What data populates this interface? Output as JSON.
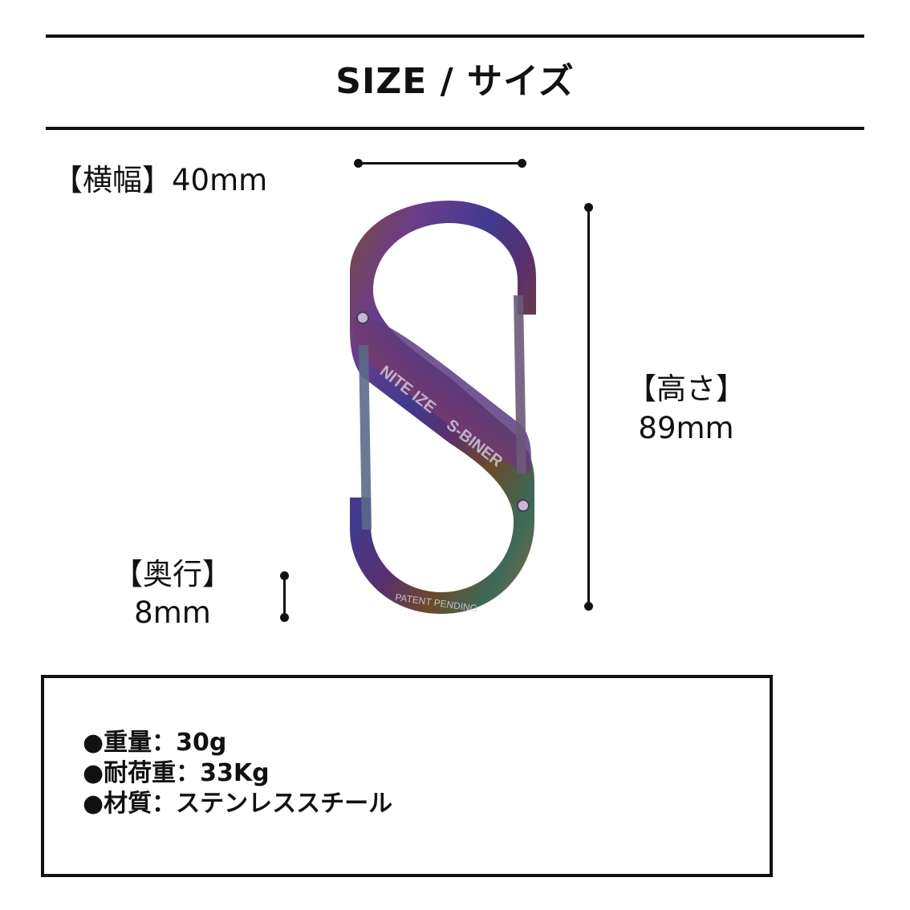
{
  "header": {
    "title": "SIZE / サイズ"
  },
  "dimensions": {
    "width_label": "【横幅】40mm",
    "height_label": "【高さ】",
    "height_value": "89mm",
    "depth_label": "【奥行】",
    "depth_value": "8mm"
  },
  "product": {
    "brand_text": "NITE IZE",
    "model_text": "S-BINER",
    "patent_text": "PATENT PENDING",
    "finish": "spectrum / rainbow stainless steel"
  },
  "specs": [
    {
      "text": "●重量：30g"
    },
    {
      "text": "●耐荷重：33Kg"
    },
    {
      "text": "●材質：ステンレススチール"
    }
  ],
  "colors": {
    "line": "#111111",
    "background": "#ffffff"
  }
}
